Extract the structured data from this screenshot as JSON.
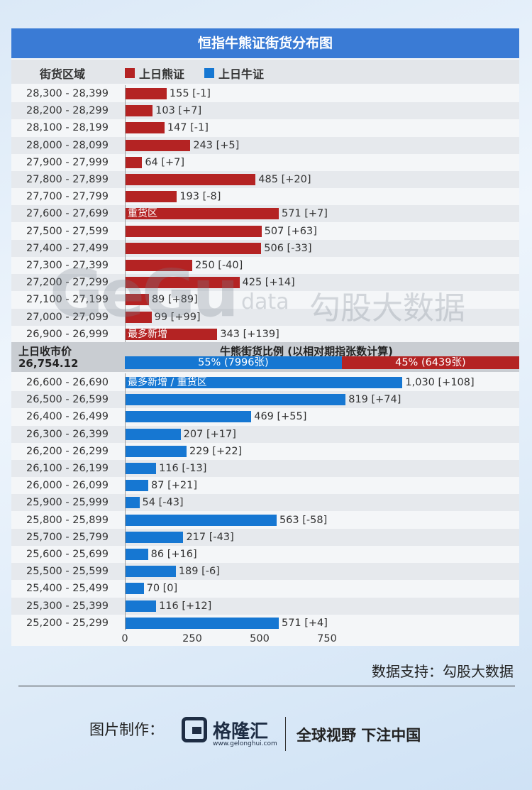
{
  "title": "恒指牛熊证街货分布图",
  "legend": {
    "header": "街货区域",
    "bear": "上日熊证",
    "bull": "上日牛证"
  },
  "colors": {
    "bear": "#b42323",
    "bull": "#1677d2",
    "title_bg": "#3a7bd5"
  },
  "chart_data": {
    "type": "bar",
    "orientation": "horizontal",
    "xlim": [
      0,
      1100
    ],
    "xticks": [
      "0",
      "250",
      "500",
      "750"
    ],
    "bear_rows": [
      {
        "range": "28,300 - 28,399",
        "value": 155,
        "label": "155 [-1]"
      },
      {
        "range": "28,200 - 28,299",
        "value": 103,
        "label": "103 [+7]"
      },
      {
        "range": "28,100 - 28,199",
        "value": 147,
        "label": "147 [-1]"
      },
      {
        "range": "28,000 - 28,099",
        "value": 243,
        "label": "243 [+5]"
      },
      {
        "range": "27,900 - 27,999",
        "value": 64,
        "label": "64 [+7]"
      },
      {
        "range": "27,800 - 27,899",
        "value": 485,
        "label": "485 [+20]"
      },
      {
        "range": "27,700 - 27,799",
        "value": 193,
        "label": "193 [-8]"
      },
      {
        "range": "27,600 - 27,699",
        "value": 571,
        "label": "571 [+7]",
        "note": "重货区"
      },
      {
        "range": "27,500 - 27,599",
        "value": 507,
        "label": "507 [+63]"
      },
      {
        "range": "27,400 - 27,499",
        "value": 506,
        "label": "506 [-33]"
      },
      {
        "range": "27,300 - 27,399",
        "value": 250,
        "label": "250 [-40]"
      },
      {
        "range": "27,200 - 27,299",
        "value": 425,
        "label": "425 [+14]"
      },
      {
        "range": "27,100 - 27,199",
        "value": 89,
        "label": "89 [+89]"
      },
      {
        "range": "27,000 - 27,099",
        "value": 99,
        "label": "99 [+99]"
      },
      {
        "range": "26,900 - 26,999",
        "value": 343,
        "label": "343 [+139]",
        "note": "最多新增"
      }
    ],
    "bull_rows": [
      {
        "range": "26,600 - 26,690",
        "value": 1030,
        "label": "1,030 [+108]",
        "note": "最多新增 / 重货区"
      },
      {
        "range": "26,500 - 26,599",
        "value": 819,
        "label": "819 [+74]"
      },
      {
        "range": "26,400 - 26,499",
        "value": 469,
        "label": "469 [+55]"
      },
      {
        "range": "26,300 - 26,399",
        "value": 207,
        "label": "207 [+17]"
      },
      {
        "range": "26,200 - 26,299",
        "value": 229,
        "label": "229 [+22]"
      },
      {
        "range": "26,100 - 26,199",
        "value": 116,
        "label": "116 [-13]"
      },
      {
        "range": "26,000 - 26,099",
        "value": 87,
        "label": "87 [+21]"
      },
      {
        "range": "25,900 - 25,999",
        "value": 54,
        "label": "54 [-43]"
      },
      {
        "range": "25,800 - 25,899",
        "value": 563,
        "label": "563 [-58]"
      },
      {
        "range": "25,700 - 25,799",
        "value": 217,
        "label": "217 [-43]"
      },
      {
        "range": "25,600 - 25,699",
        "value": 86,
        "label": "86 [+16]"
      },
      {
        "range": "25,500 - 25,599",
        "value": 189,
        "label": "189 [-6]"
      },
      {
        "range": "25,400 - 25,499",
        "value": 70,
        "label": "70 [0]"
      },
      {
        "range": "25,300 - 25,399",
        "value": 116,
        "label": "116 [+12]"
      },
      {
        "range": "25,200 - 25,299",
        "value": 571,
        "label": "571 [+4]"
      }
    ]
  },
  "middle": {
    "close_label": "上日收市价",
    "close_value": "26,754.12",
    "ratio_title": "牛熊街货比例 (以相对期指张数计算)",
    "bull_pct": 55,
    "bull_text": "55% (7996张)",
    "bear_text": "45% (6439张)"
  },
  "watermark": {
    "brand": "GeGu",
    "data": "data",
    "cn": "勾股大数据"
  },
  "source": "数据支持：勾股大数据",
  "footer": {
    "made_by": "图片制作：",
    "logo_text": "格隆汇",
    "logo_url": "www.gelonghui.com",
    "slogan": "全球视野 下注中国"
  }
}
